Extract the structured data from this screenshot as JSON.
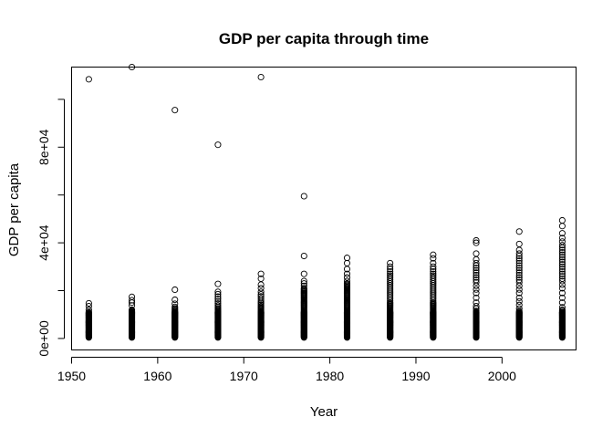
{
  "chart_data": {
    "type": "scatter",
    "title": "GDP per capita through time",
    "xlabel": "Year",
    "ylabel": "GDP per capita",
    "xlim": [
      1950.0,
      2008.6
    ],
    "ylim": [
      -4800,
      113500
    ],
    "xticks": [
      1950,
      1960,
      1970,
      1980,
      1990,
      2000
    ],
    "xtick_labels": [
      "1950",
      "1960",
      "1970",
      "1980",
      "1990",
      "2000"
    ],
    "yticks": [
      0,
      20000,
      40000,
      60000,
      80000,
      100000
    ],
    "ytick_labels": [
      "0e+00",
      "",
      "4e+04",
      "",
      "8e+04",
      ""
    ],
    "grid": false,
    "marker": "open-circle",
    "points": [
      {
        "year": 1952,
        "values": [
          400,
          600,
          800,
          1000,
          1200,
          1400,
          1600,
          1800,
          2000,
          2200,
          2400,
          2600,
          2800,
          3000,
          3200,
          3400,
          3600,
          3800,
          4000,
          4200,
          4400,
          4600,
          4800,
          5000,
          5200,
          5400,
          5600,
          5800,
          6000,
          6200,
          6400,
          6600,
          6800,
          7000,
          7200,
          7400,
          7600,
          7800,
          8000,
          8200,
          8400,
          8600,
          8800,
          9000,
          9200,
          9400,
          9600,
          9800,
          10000,
          10200,
          10400,
          10600,
          11000,
          12000,
          13500,
          14700,
          108400
        ]
      },
      {
        "year": 1957,
        "values": [
          400,
          600,
          800,
          1000,
          1200,
          1400,
          1600,
          1800,
          2000,
          2200,
          2400,
          2600,
          2800,
          3000,
          3200,
          3400,
          3600,
          3800,
          4000,
          4200,
          4400,
          4600,
          4800,
          5000,
          5200,
          5400,
          5600,
          5800,
          6000,
          6200,
          6400,
          6600,
          6800,
          7000,
          7200,
          7400,
          7600,
          7800,
          8000,
          8200,
          8400,
          8600,
          8800,
          9000,
          9200,
          9400,
          9600,
          9800,
          10000,
          10200,
          10400,
          10600,
          10800,
          11000,
          11200,
          11600,
          12000,
          13800,
          15000,
          16000,
          17400,
          113500
        ]
      },
      {
        "year": 1962,
        "values": [
          400,
          600,
          800,
          1000,
          1200,
          1400,
          1600,
          1800,
          2000,
          2200,
          2400,
          2600,
          2800,
          3000,
          3200,
          3400,
          3600,
          3800,
          4000,
          4200,
          4400,
          4600,
          4800,
          5000,
          5200,
          5400,
          5600,
          5800,
          6000,
          6200,
          6400,
          6600,
          6800,
          7000,
          7200,
          7400,
          7600,
          7800,
          8000,
          8200,
          8400,
          8600,
          8800,
          9000,
          9200,
          9400,
          9600,
          9800,
          10000,
          10200,
          10400,
          10600,
          10800,
          11000,
          11400,
          11800,
          12200,
          12600,
          13200,
          14500,
          16200,
          20400,
          95500
        ]
      },
      {
        "year": 1967,
        "values": [
          400,
          600,
          800,
          1000,
          1200,
          1400,
          1600,
          1800,
          2000,
          2200,
          2400,
          2600,
          2800,
          3000,
          3200,
          3400,
          3600,
          3800,
          4000,
          4200,
          4400,
          4600,
          4800,
          5000,
          5200,
          5400,
          5600,
          5800,
          6000,
          6200,
          6400,
          6600,
          6800,
          7000,
          7200,
          7400,
          7600,
          7800,
          8000,
          8200,
          8400,
          8600,
          8800,
          9000,
          9200,
          9400,
          9600,
          9800,
          10000,
          10200,
          10400,
          10600,
          10800,
          11000,
          11400,
          11800,
          12200,
          12600,
          13200,
          13800,
          14600,
          15500,
          16500,
          17500,
          18500,
          19500,
          22800,
          81000
        ]
      },
      {
        "year": 1972,
        "values": [
          400,
          600,
          800,
          1000,
          1200,
          1400,
          1600,
          1800,
          2000,
          2200,
          2400,
          2600,
          2800,
          3000,
          3200,
          3400,
          3600,
          3800,
          4000,
          4200,
          4400,
          4600,
          4800,
          5000,
          5200,
          5400,
          5600,
          5800,
          6000,
          6200,
          6400,
          6600,
          6800,
          7000,
          7200,
          7400,
          7600,
          7800,
          8000,
          8200,
          8400,
          8600,
          8800,
          9000,
          9200,
          9400,
          9600,
          9800,
          10000,
          10200,
          10400,
          10600,
          10800,
          11000,
          11400,
          11800,
          12200,
          12600,
          13000,
          13400,
          14000,
          14600,
          15200,
          16000,
          16800,
          17600,
          18400,
          19500,
          21000,
          22500,
          25000,
          27000,
          109300
        ]
      },
      {
        "year": 1977,
        "values": [
          400,
          600,
          800,
          1000,
          1200,
          1400,
          1600,
          1800,
          2000,
          2200,
          2400,
          2600,
          2800,
          3000,
          3200,
          3400,
          3600,
          3800,
          4000,
          4200,
          4400,
          4600,
          4800,
          5000,
          5200,
          5400,
          5600,
          5800,
          6000,
          6200,
          6400,
          6600,
          6800,
          7000,
          7200,
          7400,
          7600,
          7800,
          8000,
          8200,
          8400,
          8600,
          8800,
          9000,
          9200,
          9400,
          9600,
          9800,
          10000,
          10200,
          10400,
          10600,
          10800,
          11000,
          11400,
          11800,
          12200,
          12600,
          13000,
          13400,
          13800,
          14200,
          14600,
          15000,
          15400,
          15800,
          16200,
          16600,
          17000,
          17400,
          17800,
          18200,
          18600,
          19000,
          19400,
          19800,
          20200,
          20600,
          21000,
          22000,
          23000,
          24000,
          27000,
          34500,
          59500
        ]
      },
      {
        "year": 1982,
        "values": [
          400,
          600,
          800,
          1000,
          1200,
          1400,
          1600,
          1800,
          2000,
          2200,
          2400,
          2600,
          2800,
          3000,
          3200,
          3400,
          3600,
          3800,
          4000,
          4200,
          4400,
          4600,
          4800,
          5000,
          5200,
          5400,
          5600,
          5800,
          6000,
          6200,
          6400,
          6600,
          6800,
          7000,
          7200,
          7400,
          7600,
          7800,
          8000,
          8200,
          8400,
          8600,
          8800,
          9000,
          9200,
          9400,
          9600,
          9800,
          10000,
          10200,
          10400,
          10600,
          10800,
          11000,
          11400,
          11800,
          12200,
          12600,
          13000,
          13400,
          13800,
          14200,
          14600,
          15000,
          15400,
          15800,
          16200,
          16600,
          17000,
          17400,
          17800,
          18200,
          18600,
          19000,
          19400,
          19800,
          20200,
          20600,
          21000,
          21400,
          21800,
          22200,
          22600,
          23000,
          24000,
          25500,
          27000,
          29000,
          31500,
          33700
        ]
      },
      {
        "year": 1987,
        "values": [
          400,
          600,
          800,
          1000,
          1200,
          1400,
          1600,
          1800,
          2000,
          2200,
          2400,
          2600,
          2800,
          3000,
          3200,
          3400,
          3600,
          3800,
          4000,
          4200,
          4400,
          4600,
          4800,
          5000,
          5200,
          5400,
          5600,
          5800,
          6000,
          6200,
          6400,
          6600,
          6800,
          7000,
          7200,
          7400,
          7600,
          7800,
          8000,
          8200,
          8400,
          8600,
          8800,
          9000,
          9200,
          9400,
          9600,
          9800,
          10000,
          10200,
          10400,
          10600,
          10800,
          11000,
          11400,
          11800,
          12200,
          12600,
          13000,
          13400,
          13800,
          14200,
          14600,
          15000,
          15800,
          16600,
          17400,
          18200,
          19000,
          19800,
          20600,
          21400,
          22200,
          23000,
          23800,
          24600,
          25400,
          26200,
          27000,
          28000,
          29000,
          30000,
          31500
        ]
      },
      {
        "year": 1992,
        "values": [
          400,
          600,
          800,
          1000,
          1200,
          1400,
          1600,
          1800,
          2000,
          2200,
          2400,
          2600,
          2800,
          3000,
          3200,
          3400,
          3600,
          3800,
          4000,
          4200,
          4400,
          4600,
          4800,
          5000,
          5200,
          5400,
          5600,
          5800,
          6000,
          6200,
          6400,
          6600,
          6800,
          7000,
          7200,
          7400,
          7600,
          7800,
          8000,
          8200,
          8400,
          8600,
          8800,
          9000,
          9200,
          9400,
          9600,
          9800,
          10000,
          10200,
          10400,
          10600,
          10800,
          11000,
          11400,
          11800,
          12200,
          12600,
          13000,
          13400,
          13800,
          14200,
          14600,
          15000,
          15800,
          16600,
          17400,
          18200,
          19000,
          19800,
          20600,
          21400,
          22200,
          23000,
          23800,
          24600,
          25400,
          26200,
          27000,
          28000,
          29000,
          30000,
          31500,
          33500,
          35000
        ]
      },
      {
        "year": 1997,
        "values": [
          400,
          600,
          800,
          1000,
          1200,
          1400,
          1600,
          1800,
          2000,
          2200,
          2400,
          2600,
          2800,
          3000,
          3200,
          3400,
          3600,
          3800,
          4000,
          4200,
          4400,
          4600,
          4800,
          5000,
          5200,
          5400,
          5600,
          5800,
          6000,
          6200,
          6400,
          6600,
          6800,
          7000,
          7200,
          7400,
          7600,
          7800,
          8000,
          8200,
          8400,
          8600,
          8800,
          9000,
          9200,
          9400,
          9600,
          9800,
          10000,
          10200,
          10400,
          10600,
          10800,
          11000,
          11500,
          12500,
          13500,
          15000,
          17000,
          19000,
          20500,
          22000,
          23500,
          24500,
          25500,
          26500,
          27500,
          28500,
          29500,
          30500,
          31500,
          33000,
          35500,
          40000,
          41000
        ]
      },
      {
        "year": 2002,
        "values": [
          400,
          600,
          800,
          1000,
          1200,
          1400,
          1600,
          1800,
          2000,
          2200,
          2400,
          2600,
          2800,
          3000,
          3200,
          3400,
          3600,
          3800,
          4000,
          4200,
          4400,
          4600,
          4800,
          5000,
          5200,
          5400,
          5600,
          5800,
          6000,
          6200,
          6400,
          6600,
          6800,
          7000,
          7200,
          7400,
          7600,
          7800,
          8000,
          8200,
          8400,
          8600,
          8800,
          9000,
          9200,
          9400,
          9600,
          9800,
          10000,
          10200,
          10400,
          10600,
          10800,
          11000,
          11500,
          12500,
          14000,
          15500,
          17000,
          19000,
          20500,
          22000,
          23500,
          24500,
          25500,
          26500,
          27500,
          28500,
          29500,
          30500,
          31500,
          32500,
          33500,
          34500,
          35500,
          37000,
          39500,
          44700
        ]
      },
      {
        "year": 2007,
        "values": [
          400,
          600,
          800,
          1000,
          1200,
          1400,
          1600,
          1800,
          2000,
          2200,
          2400,
          2600,
          2800,
          3000,
          3200,
          3400,
          3600,
          3800,
          4000,
          4200,
          4400,
          4600,
          4800,
          5000,
          5200,
          5400,
          5600,
          5800,
          6000,
          6200,
          6400,
          6600,
          6800,
          7000,
          7200,
          7400,
          7600,
          7800,
          8000,
          8200,
          8400,
          8600,
          8800,
          9000,
          9200,
          9400,
          9600,
          9800,
          10000,
          10200,
          10400,
          10600,
          10800,
          11000,
          11500,
          12000,
          13000,
          15000,
          17000,
          19000,
          21000,
          22500,
          24000,
          25000,
          26000,
          27000,
          28000,
          29000,
          30000,
          31000,
          32000,
          33000,
          34000,
          35000,
          36000,
          37000,
          38000,
          39000,
          40500,
          42000,
          44000,
          47000,
          49400
        ]
      }
    ]
  }
}
